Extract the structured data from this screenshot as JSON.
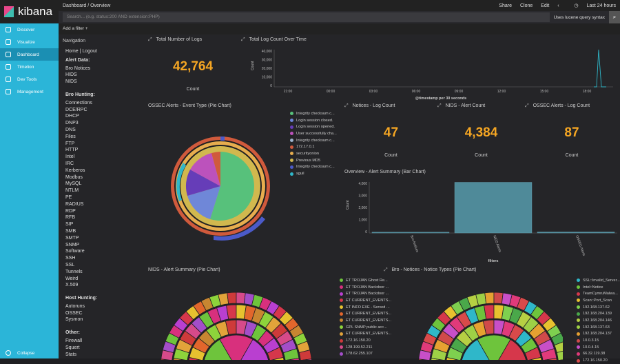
{
  "app": {
    "brand": "kibana"
  },
  "sidebar": {
    "items": [
      {
        "label": "Discover",
        "active": false
      },
      {
        "label": "Visualize",
        "active": false
      },
      {
        "label": "Dashboard",
        "active": true
      },
      {
        "label": "Timelion",
        "active": false
      },
      {
        "label": "Dev Tools",
        "active": false
      },
      {
        "label": "Management",
        "active": false
      }
    ],
    "collapse": "Collapse"
  },
  "topbar": {
    "breadcrumb": "Dashboard  /  Overview",
    "share": "Share",
    "clone": "Clone",
    "edit": "Edit",
    "time": "Last 24 hours"
  },
  "query": {
    "placeholder": "Search... (e.g. status:200 AND extension:PHP)",
    "lucene": "Uses lucene query syntax"
  },
  "filter": {
    "add": "Add a filter +"
  },
  "navigation": {
    "title": "Navigation",
    "home": "Home | Logout",
    "alert_header": "Alert Data:",
    "alert_items": [
      "Bro Notices",
      "HIDS",
      "NIDS"
    ],
    "bro_header": "Bro Hunting:",
    "bro_items": [
      "Connections",
      "DCE/RPC",
      "DHCP",
      "DNP3",
      "DNS",
      "Files",
      "FTP",
      "HTTP",
      "Intel",
      "IRC",
      "Kerberos",
      "Modbus",
      "MySQL",
      "NTLM",
      "PE",
      "RADIUS",
      "RDP",
      "RFB",
      "SIP",
      "SMB",
      "SMTP",
      "SNMP",
      "Software",
      "SSH",
      "SSL",
      "Tunnels",
      "Weird",
      "X.509"
    ],
    "host_header": "Host Hunting:",
    "host_items": [
      "Autoruns",
      "OSSEC",
      "Sysmon"
    ],
    "other_header": "Other:",
    "other_items": [
      "Firewall",
      "Squert",
      "Stats"
    ]
  },
  "panels": {
    "total_logs": {
      "title": "Total Number of Logs",
      "value": "42,764",
      "label": "Count"
    },
    "log_time": {
      "title": "Total Log Count Over Time",
      "ylabel": "Count",
      "xlabel": "@timestamp per 30 seconds",
      "yticks": [
        "40,000",
        "30,000",
        "20,000",
        "10,000",
        "0"
      ],
      "xticks": [
        "21:00",
        "00:00",
        "03:00",
        "06:00",
        "09:00",
        "12:00",
        "15:00",
        "18:00"
      ]
    },
    "ossec_pie": {
      "title": "OSSEC Alerts - Event Type (Pie Chart)"
    },
    "notices": {
      "title": "Notices - Log Count",
      "value": "47",
      "label": "Count"
    },
    "nids_count": {
      "title": "NIDS - Alert Count",
      "value": "4,384",
      "label": "Count"
    },
    "ossec_count": {
      "title": "OSSEC Alerts - Log Count",
      "value": "87",
      "label": "Count"
    },
    "alert_bar": {
      "title": "Overview - Alert Summary (Bar Chart)",
      "ylabel": "Count",
      "xlabel": "filters",
      "yticks": [
        "4,000",
        "3,000",
        "2,000",
        "1,000",
        "0"
      ],
      "cats": [
        "Bro Notices",
        "NIDS Alerts",
        "OSSEC Alerts"
      ]
    },
    "nids_pie": {
      "title": "NIDS - Alert Summary (Pie Chart)"
    },
    "bro_pie": {
      "title": "Bro - Notices - Notice Types (Pie Chart)"
    }
  },
  "ossec_legend": [
    {
      "label": "Integrity checksum c...",
      "color": "#57c17b"
    },
    {
      "label": "Login session closed.",
      "color": "#6f87d8"
    },
    {
      "label": "Login session opened.",
      "color": "#663db8"
    },
    {
      "label": "User successfully cha...",
      "color": "#bc52bc"
    },
    {
      "label": "Integrity checksum c...",
      "color": "#9eb4ce"
    },
    {
      "label": "172.17.0.1",
      "color": "#d05a3c"
    },
    {
      "label": "securityonion",
      "color": "#e7ad4e"
    },
    {
      "label": "Previous MD5",
      "color": "#d1b84e"
    },
    {
      "label": "Integrity checksum c...",
      "color": "#4b5ac8"
    },
    {
      "label": "sguil",
      "color": "#2fb7c9"
    }
  ],
  "nids_legend": [
    {
      "label": "ET TROJAN Ghost Re...",
      "color": "#6ec43c"
    },
    {
      "label": "ET TROJAN Backdoor ...",
      "color": "#d8307d"
    },
    {
      "label": "ET TROJAN Backdoor ...",
      "color": "#b93fd0"
    },
    {
      "label": "ET CURRENT_EVENTS...",
      "color": "#d6374b"
    },
    {
      "label": "ET INFO EXE - Served ...",
      "color": "#e7c12f"
    },
    {
      "label": "ET CURRENT_EVENTS...",
      "color": "#e2662c"
    },
    {
      "label": "ET CURRENT_EVENTS...",
      "color": "#c88631"
    },
    {
      "label": "GPL SNMP public acc...",
      "color": "#8dd33b"
    },
    {
      "label": "ET CURRENT_EVENTS...",
      "color": "#e2a33a"
    },
    {
      "label": "172.16.150.20",
      "color": "#ce3a3a"
    },
    {
      "label": "128.199.52.211",
      "color": "#d64a8a"
    },
    {
      "label": "178.62.255.107",
      "color": "#a34ec9"
    }
  ],
  "bro_legend": [
    {
      "label": "SSL::Invalid_Server...",
      "color": "#2fb7c9"
    },
    {
      "label": "Intel::Notice",
      "color": "#6ec43c"
    },
    {
      "label": "TeamCymruMalwa...",
      "color": "#d6374b"
    },
    {
      "label": "Scan::Port_Scan",
      "color": "#e7c12f"
    },
    {
      "label": "192.168.137.62",
      "color": "#7ed04f"
    },
    {
      "label": "192.168.204.139",
      "color": "#4aa84a"
    },
    {
      "label": "192.168.204.146",
      "color": "#b6d043"
    },
    {
      "label": "192.168.137.63",
      "color": "#9ed046"
    },
    {
      "label": "192.168.204.137",
      "color": "#e6a131"
    },
    {
      "label": "10.0.3.15",
      "color": "#d04a4a"
    },
    {
      "label": "10.0.4.15",
      "color": "#c84fc8"
    },
    {
      "label": "66.32.119.38",
      "color": "#e03a7a"
    },
    {
      "label": "172.16.150.20",
      "color": "#d84a4a"
    }
  ]
}
